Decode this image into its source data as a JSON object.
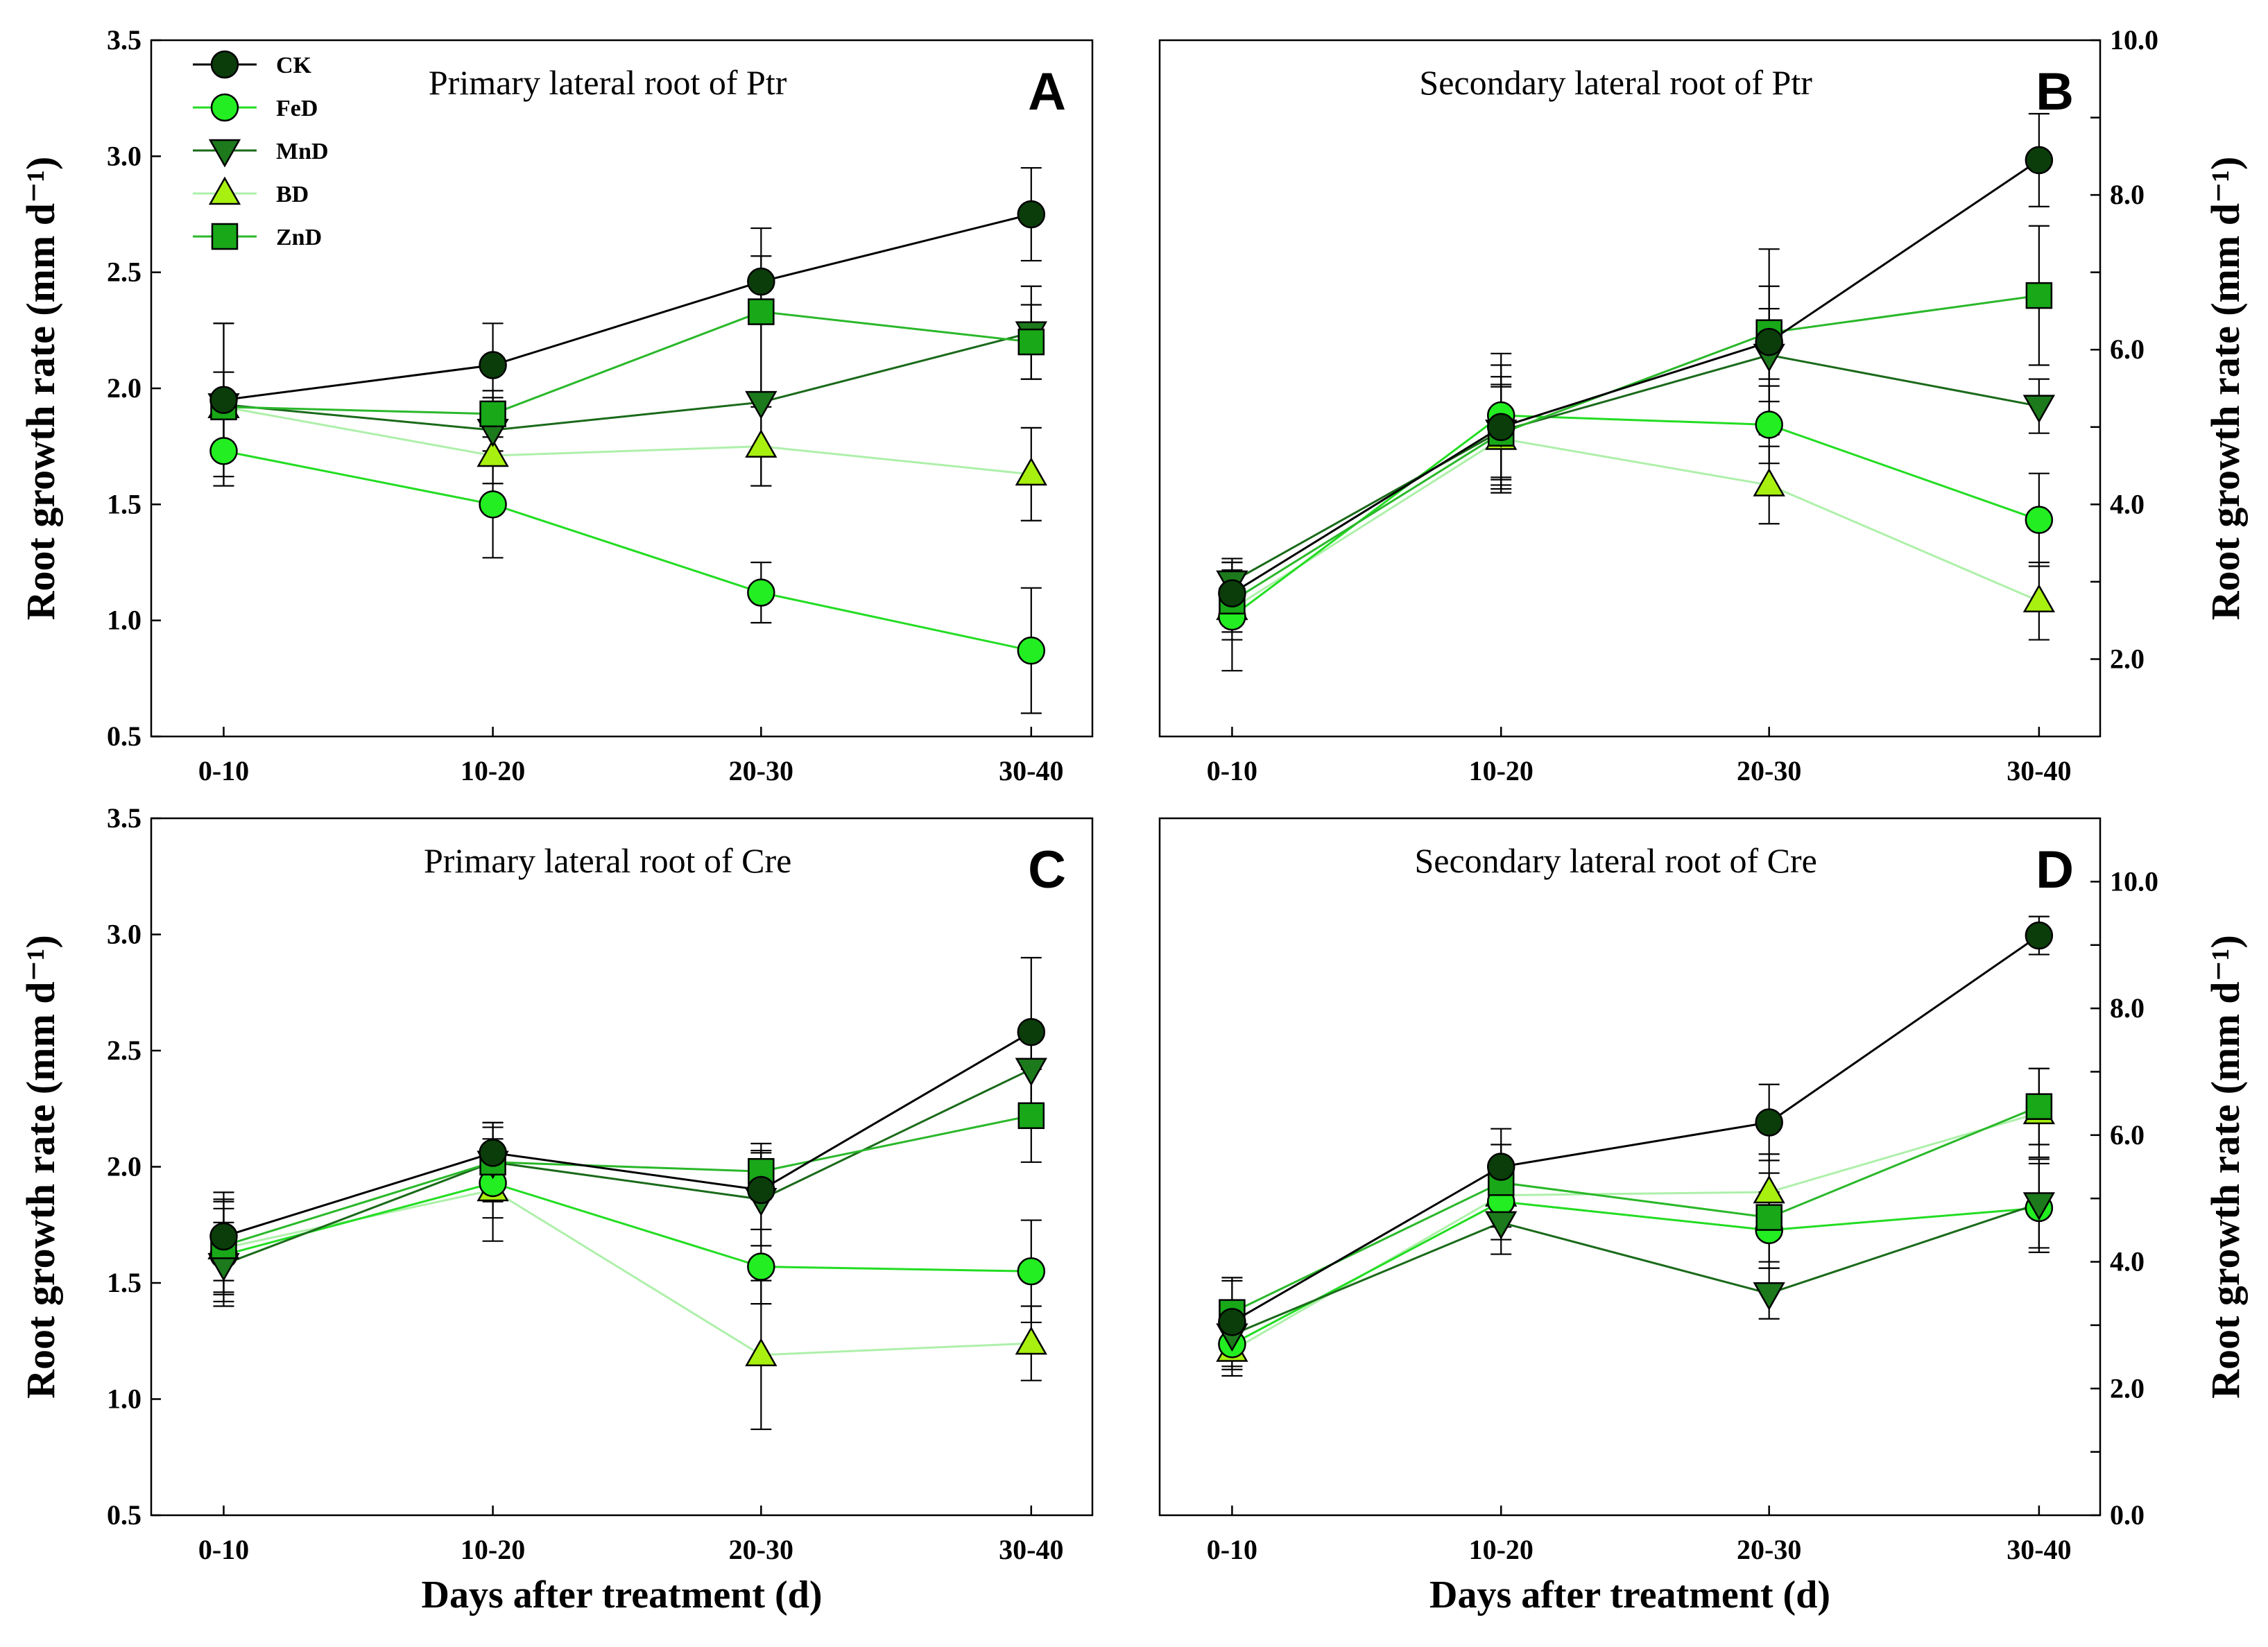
{
  "figure": {
    "legend": [
      {
        "name": "CK",
        "color": "#0b3d0b",
        "marker": "circle"
      },
      {
        "name": "FeD",
        "color": "#22ee22",
        "marker": "circle"
      },
      {
        "name": "MnD",
        "color": "#1c7a1c",
        "marker": "triangle-down"
      },
      {
        "name": "BD",
        "color": "#a8f010",
        "marker": "triangle-up"
      },
      {
        "name": "ZnD",
        "color": "#18a818",
        "marker": "square"
      }
    ],
    "line_colors": {
      "CK": "#000000",
      "FeD": "#22dd22",
      "MnD": "#1a6a1a",
      "BD": "#aef0aa",
      "ZnD": "#2ab82a"
    }
  },
  "chart_data": [
    {
      "panel": "A",
      "type": "line",
      "title": "Primary lateral root of Ptr",
      "ylabel": "Root growth rate (mm d⁻¹)",
      "xlabel": "",
      "axis_side": "left",
      "categories": [
        "0-10",
        "10-20",
        "20-30",
        "30-40"
      ],
      "ylim": [
        0.5,
        3.5
      ],
      "yticks": [
        "0.5",
        "1.0",
        "1.5",
        "2.0",
        "2.5",
        "3.0",
        "3.5"
      ],
      "series": [
        {
          "name": "CK",
          "values": [
            1.95,
            2.1,
            2.46,
            2.75
          ],
          "errors": [
            0.33,
            0.18,
            0.11,
            0.2
          ]
        },
        {
          "name": "FeD",
          "values": [
            1.73,
            1.5,
            1.12,
            0.87
          ],
          "errors": [
            0.15,
            0.23,
            0.13,
            0.27
          ]
        },
        {
          "name": "MnD",
          "values": [
            1.93,
            1.82,
            1.94,
            2.24
          ],
          "errors": [
            0.35,
            0.14,
            0.36,
            0.2
          ]
        },
        {
          "name": "BD",
          "values": [
            1.92,
            1.71,
            1.75,
            1.63
          ],
          "errors": [
            0.15,
            0.12,
            0.17,
            0.2
          ]
        },
        {
          "name": "ZnD",
          "values": [
            1.92,
            1.89,
            2.33,
            2.2
          ],
          "errors": [
            0.15,
            0.1,
            0.36,
            0.16
          ]
        }
      ]
    },
    {
      "panel": "B",
      "type": "line",
      "title": "Secondary lateral root of Ptr",
      "ylabel": "Root growth rate (mm d⁻¹)",
      "xlabel": "",
      "axis_side": "right",
      "categories": [
        "0-10",
        "10-20",
        "20-30",
        "30-40"
      ],
      "ylim": [
        1.0,
        10.0
      ],
      "yticks": [
        "2.0",
        "",
        "4.0",
        "",
        "6.0",
        "",
        "8.0",
        "",
        "10.0"
      ],
      "ytick_values": [
        2,
        3,
        4,
        5,
        6,
        7,
        8,
        9,
        10
      ],
      "series": [
        {
          "name": "CK",
          "values": [
            2.85,
            5.0,
            6.1,
            8.45
          ],
          "errors": [
            0.4,
            0.8,
            1.2,
            0.6
          ]
        },
        {
          "name": "FeD",
          "values": [
            2.55,
            5.15,
            5.03,
            3.8
          ],
          "errors": [
            0.7,
            0.8,
            0.5,
            0.6
          ]
        },
        {
          "name": "MnD",
          "values": [
            3.0,
            4.95,
            5.93,
            5.27
          ],
          "errors": [
            0.3,
            0.7,
            0.6,
            0.35
          ]
        },
        {
          "name": "BD",
          "values": [
            2.65,
            4.85,
            4.25,
            2.75
          ],
          "errors": [
            0.4,
            0.7,
            0.5,
            0.5
          ]
        },
        {
          "name": "ZnD",
          "values": [
            2.75,
            4.92,
            6.22,
            6.7
          ],
          "errors": [
            0.4,
            0.6,
            0.6,
            0.9
          ]
        }
      ]
    },
    {
      "panel": "C",
      "type": "line",
      "title": "Primary lateral root of Cre",
      "ylabel": "Root growth rate (mm d⁻¹)",
      "xlabel": "Days after treatment (d)",
      "axis_side": "left",
      "categories": [
        "0-10",
        "10-20",
        "20-30",
        "30-40"
      ],
      "ylim": [
        0.5,
        3.5
      ],
      "yticks": [
        "0.5",
        "1.0",
        "1.5",
        "2.0",
        "2.5",
        "3.0",
        "3.5"
      ],
      "series": [
        {
          "name": "CK",
          "values": [
            1.7,
            2.06,
            1.9,
            2.58
          ],
          "errors": [
            0.19,
            0.13,
            0.17,
            0.32
          ]
        },
        {
          "name": "FeD",
          "values": [
            1.62,
            1.93,
            1.57,
            1.55
          ],
          "errors": [
            0.2,
            0.15,
            0.16,
            0.22
          ]
        },
        {
          "name": "MnD",
          "values": [
            1.58,
            2.02,
            1.86,
            2.42
          ],
          "errors": [
            0.18,
            0.17,
            0.2,
            0.2
          ]
        },
        {
          "name": "BD",
          "values": [
            1.65,
            1.9,
            1.19,
            1.24
          ],
          "errors": [
            0.2,
            0.22,
            0.32,
            0.16
          ]
        },
        {
          "name": "ZnD",
          "values": [
            1.66,
            2.02,
            1.98,
            2.22
          ],
          "errors": [
            0.2,
            0.15,
            0.12,
            0.2
          ]
        }
      ]
    },
    {
      "panel": "D",
      "type": "line",
      "title": "Secondary lateral root of Cre",
      "ylabel": "Root growth rate (mm d⁻¹)",
      "xlabel": "Days after treatment (d)",
      "axis_side": "right",
      "categories": [
        "0-10",
        "10-20",
        "20-30",
        "30-40"
      ],
      "ylim": [
        0.0,
        11.0
      ],
      "yticks": [
        "0.0",
        "",
        "2.0",
        "",
        "4.0",
        "",
        "6.0",
        "",
        "8.0",
        "",
        "10.0"
      ],
      "ytick_values": [
        0,
        1,
        2,
        3,
        4,
        5,
        6,
        7,
        8,
        9,
        10
      ],
      "series": [
        {
          "name": "CK",
          "values": [
            3.05,
            5.5,
            6.2,
            9.15
          ],
          "errors": [
            0.7,
            0.6,
            0.6,
            0.3
          ]
        },
        {
          "name": "FeD",
          "values": [
            2.7,
            4.95,
            4.5,
            4.85
          ],
          "errors": [
            0.4,
            0.6,
            0.6,
            0.7
          ]
        },
        {
          "name": "MnD",
          "values": [
            2.85,
            4.62,
            3.5,
            4.92
          ],
          "errors": [
            0.4,
            0.5,
            0.4,
            0.7
          ]
        },
        {
          "name": "BD",
          "values": [
            2.6,
            5.05,
            5.1,
            6.35
          ],
          "errors": [
            0.4,
            0.5,
            0.6,
            0.7
          ]
        },
        {
          "name": "ZnD",
          "values": [
            3.2,
            5.25,
            4.7,
            6.45
          ],
          "errors": [
            0.5,
            0.6,
            0.7,
            0.6
          ]
        }
      ]
    }
  ]
}
